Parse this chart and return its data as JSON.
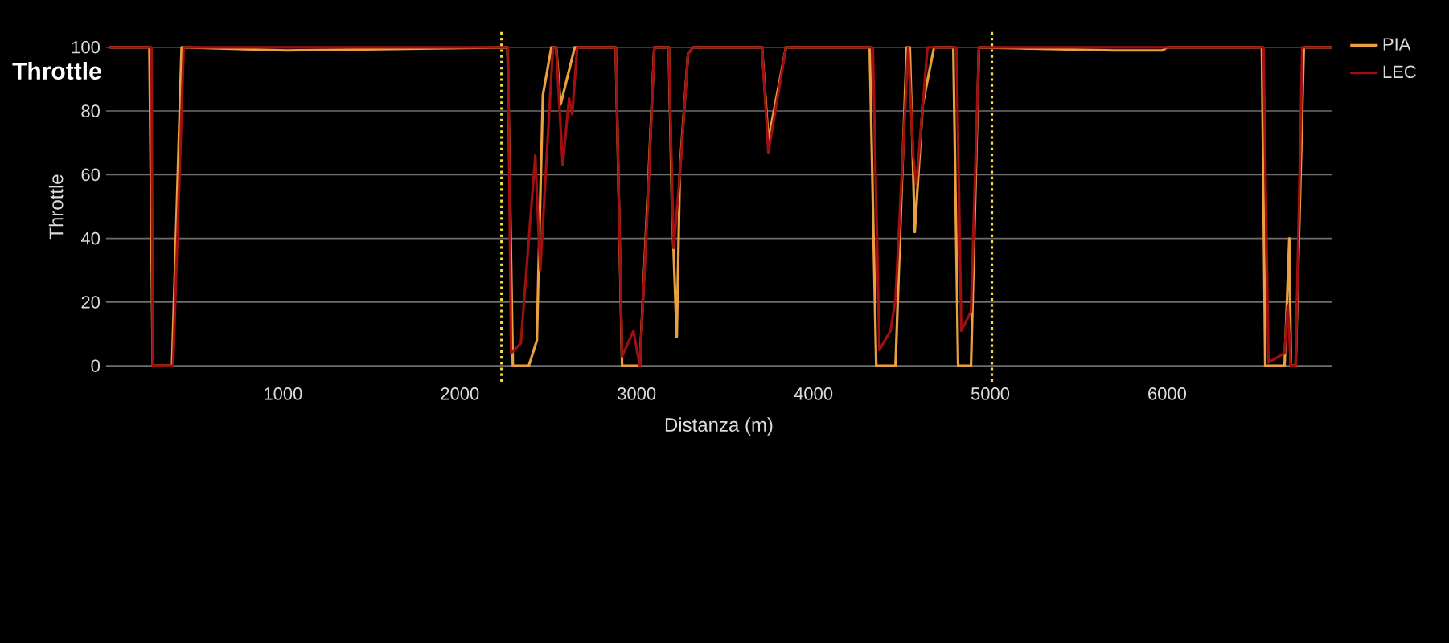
{
  "chart_data": {
    "type": "line",
    "title": "Throttle",
    "xlabel": "Distanza (m)",
    "ylabel": "Throttle",
    "xlim": [
      0,
      6930
    ],
    "ylim": [
      -5,
      105
    ],
    "xticks": [
      1000,
      2000,
      3000,
      4000,
      5000,
      6000
    ],
    "yticks": [
      0,
      20,
      40,
      60,
      80,
      100
    ],
    "grid": "y",
    "legend": "right",
    "marker": "none",
    "line_style": "solid",
    "ref_lines": [
      {
        "axis": "x",
        "value": 2236,
        "color": "#f0e040",
        "line_style": "dotted"
      },
      {
        "axis": "x",
        "value": 5009,
        "color": "#f0e040",
        "line_style": "dotted"
      }
    ],
    "series": [
      {
        "name": "PIA",
        "color": "#e8a040",
        "x": [
          20,
          245,
          264,
          373,
          427,
          1018,
          2270,
          2300,
          2390,
          2436,
          2445,
          2470,
          2518,
          2545,
          2570,
          2650,
          2882,
          2918,
          3018,
          3064,
          3100,
          3182,
          3200,
          3227,
          3245,
          3291,
          3320,
          3709,
          3745,
          3845,
          4318,
          4355,
          4464,
          4527,
          4545,
          4573,
          4618,
          4682,
          4791,
          4818,
          4891,
          4936,
          5700,
          5973,
          6000,
          6536,
          6555,
          6664,
          6691,
          6700,
          6727,
          6773,
          6930
        ],
        "values": [
          100,
          100,
          0,
          0,
          100,
          99,
          100,
          0,
          0,
          8,
          30,
          85,
          100,
          100,
          82,
          100,
          100,
          0,
          0,
          55,
          100,
          100,
          50,
          9,
          62,
          98,
          100,
          100,
          71,
          100,
          100,
          0,
          0,
          100,
          100,
          42,
          82,
          100,
          100,
          0,
          0,
          100,
          99,
          99,
          100,
          100,
          0,
          0,
          40,
          0,
          0,
          100,
          100
        ]
      },
      {
        "name": "LEC",
        "color": "#a01010",
        "x": [
          20,
          257,
          264,
          379,
          439,
          2273,
          2290,
          2345,
          2427,
          2455,
          2527,
          2545,
          2582,
          2618,
          2636,
          2664,
          2882,
          2918,
          2982,
          3018,
          3064,
          3100,
          3182,
          3209,
          3245,
          3291,
          3320,
          3709,
          3745,
          3845,
          4318,
          4336,
          4373,
          4436,
          4464,
          4536,
          4564,
          4582,
          4645,
          4791,
          4809,
          4836,
          4891,
          4936,
          6536,
          6545,
          6573,
          6664,
          6682,
          6700,
          6727,
          6764,
          6930
        ],
        "values": [
          100,
          100,
          0,
          0,
          100,
          100,
          4,
          7,
          66,
          30,
          100,
          100,
          63,
          84,
          79,
          100,
          100,
          3,
          11,
          0,
          52,
          100,
          100,
          37,
          60,
          98,
          100,
          100,
          67,
          100,
          100,
          100,
          5,
          11,
          21,
          100,
          66,
          57,
          100,
          100,
          100,
          11,
          17,
          100,
          100,
          100,
          1,
          4,
          19,
          0,
          0,
          100,
          100
        ]
      }
    ]
  }
}
